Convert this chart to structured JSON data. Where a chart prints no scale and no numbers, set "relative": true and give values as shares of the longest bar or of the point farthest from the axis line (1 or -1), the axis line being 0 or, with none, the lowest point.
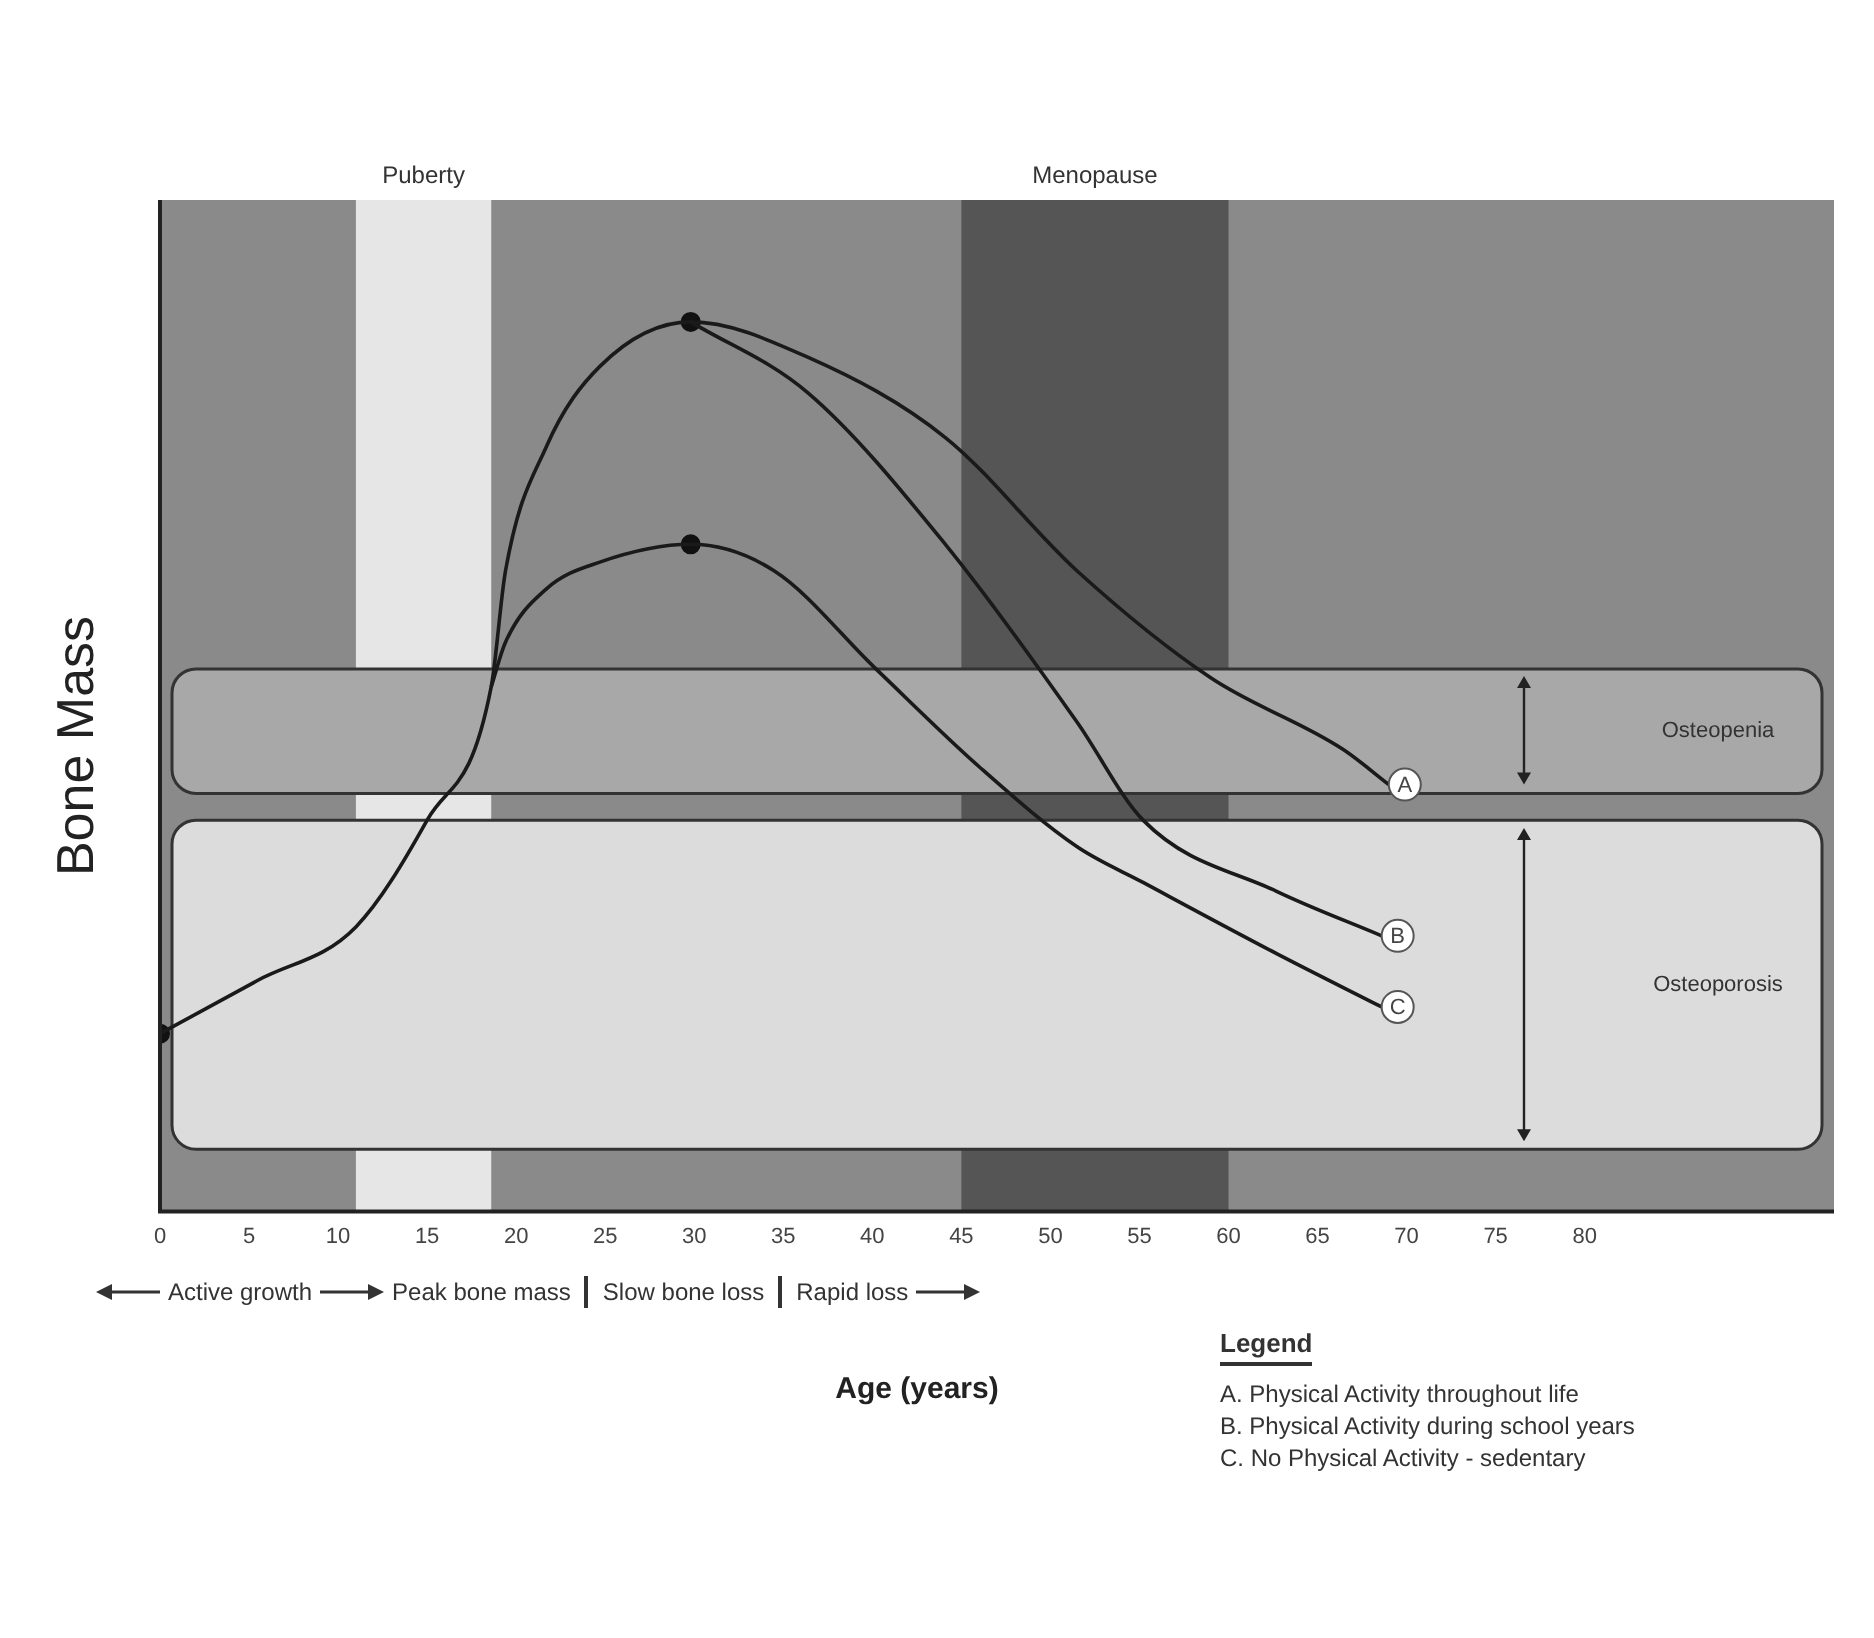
{
  "chart_data": {
    "type": "line",
    "relative": true,
    "xlabel": "Age (years)",
    "ylabel": "Bone Mass",
    "xlim": [
      0,
      94
    ],
    "xticks": [
      0,
      5,
      10,
      15,
      20,
      25,
      30,
      35,
      40,
      45,
      50,
      55,
      60,
      65,
      70,
      75,
      80
    ],
    "line_style": "solid",
    "legend_title": "Legend",
    "series": [
      {
        "name": "A",
        "color": "#1a1a1a",
        "x": [
          0,
          5.5,
          11,
          15,
          18.6,
          19.4,
          21.7,
          24.7,
          29.8,
          36.4,
          44.1,
          51.5,
          59,
          66.4,
          69
        ],
        "values": [
          0.2,
          0.26,
          0.32,
          0.44,
          0.59,
          0.72,
          0.86,
          0.95,
          1,
          0.96,
          0.87,
          0.72,
          0.6,
          0.52,
          0.48
        ]
      },
      {
        "name": "B",
        "color": "#1a1a1a",
        "x": [
          29.8,
          36.4,
          44.1,
          51.5,
          55.2,
          62.7,
          68.6
        ],
        "values": [
          1,
          0.92,
          0.75,
          0.55,
          0.44,
          0.36,
          0.31
        ]
      },
      {
        "name": "C",
        "color": "#1a1a1a",
        "x": [
          18.6,
          19.4,
          21.7,
          24.7,
          29.8,
          34.5,
          40.2,
          46,
          51.5,
          55.2,
          62.7,
          68.6
        ],
        "values": [
          0.59,
          0.64,
          0.7,
          0.73,
          0.75,
          0.72,
          0.61,
          0.5,
          0.41,
          0.37,
          0.29,
          0.23
        ]
      },
      {
        "type": "scatter",
        "marker": "circle",
        "color": "#111111",
        "x": [
          0,
          29.8,
          29.8
        ],
        "values": [
          0.2,
          1,
          0.75
        ]
      }
    ],
    "bands": [
      {
        "axis": "x",
        "from": 11,
        "to": 18.6,
        "label": "Puberty",
        "color": "#e6e6e6"
      },
      {
        "axis": "x",
        "from": 45,
        "to": 60,
        "label": "Menopause",
        "color": "#555555"
      },
      {
        "axis": "y",
        "from": 0.47,
        "to": 0.61,
        "label": "Osteopenia",
        "color": "#a8a8a8"
      },
      {
        "axis": "y",
        "from": 0.07,
        "to": 0.44,
        "label": "Osteoporosis",
        "color": "#dcdcdc"
      }
    ],
    "annotations": [
      "Active growth",
      "Peak bone mass",
      "Slow bone loss",
      "Rapid loss",
      "A. Physical Activity throughout life",
      "B. Physical Activity during school years",
      "C. No Physical Activity - sedentary"
    ]
  }
}
